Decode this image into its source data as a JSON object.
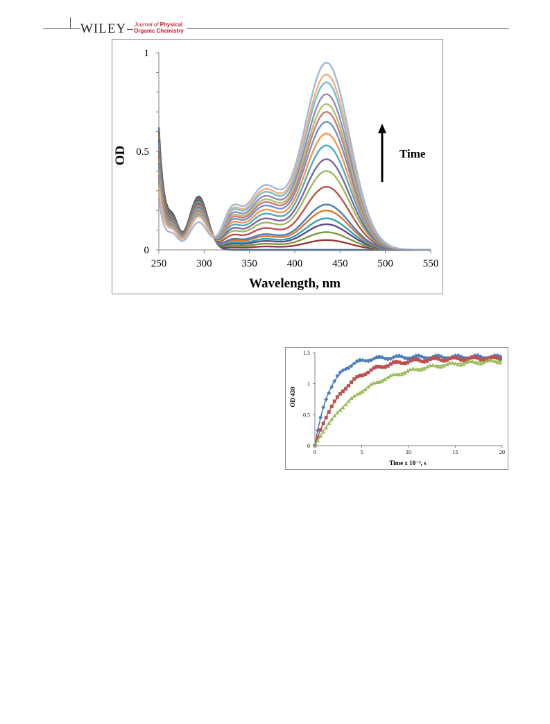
{
  "header": {
    "publisher": "WILEY",
    "journal_prefix": "Journal of",
    "journal_line1": "Physical",
    "journal_line2": "Organic Chemistry",
    "accent_color": "#c41a2b"
  },
  "chart_data": [
    {
      "type": "line",
      "title": "",
      "xlabel": "Wavelength, nm",
      "ylabel": "OD",
      "xlim": [
        250,
        550
      ],
      "ylim": [
        0,
        1
      ],
      "x_ticks": [
        "250",
        "300",
        "350",
        "400",
        "450",
        "500",
        "550"
      ],
      "y_ticks": [
        "0",
        "0.5",
        "1"
      ],
      "grid": false,
      "legend": "none",
      "annotation": "Time",
      "annotation_arrow": "up",
      "peak_wavelength": 435,
      "isosbestic_point": [
        313,
        0.19
      ],
      "series": [
        {
          "color": "#2e5f99",
          "values": {
            "peak": 0.0,
            "uv270": 0.205,
            "uv295": 0.27,
            "uv250": 0.62
          }
        },
        {
          "color": "#9a3735",
          "values": {
            "peak": 0.05,
            "uv270": 0.2,
            "uv295": 0.264,
            "uv250": 0.6
          }
        },
        {
          "color": "#7a9a3e",
          "values": {
            "peak": 0.09,
            "uv270": 0.195,
            "uv295": 0.258,
            "uv250": 0.58
          }
        },
        {
          "color": "#5f4a8a",
          "values": {
            "peak": 0.13,
            "uv270": 0.19,
            "uv295": 0.252,
            "uv250": 0.56
          }
        },
        {
          "color": "#2e9fb6",
          "values": {
            "peak": 0.16,
            "uv270": 0.185,
            "uv295": 0.246,
            "uv250": 0.54
          }
        },
        {
          "color": "#e0762d",
          "values": {
            "peak": 0.2,
            "uv270": 0.18,
            "uv295": 0.24,
            "uv250": 0.52
          }
        },
        {
          "color": "#4a7ab8",
          "values": {
            "peak": 0.23,
            "uv270": 0.175,
            "uv295": 0.234,
            "uv250": 0.5
          }
        },
        {
          "color": "#c0504d",
          "values": {
            "peak": 0.32,
            "uv270": 0.17,
            "uv295": 0.228,
            "uv250": 0.48
          }
        },
        {
          "color": "#9bbb59",
          "values": {
            "peak": 0.4,
            "uv270": 0.165,
            "uv295": 0.222,
            "uv250": 0.46
          }
        },
        {
          "color": "#8064a2",
          "values": {
            "peak": 0.46,
            "uv270": 0.16,
            "uv295": 0.216,
            "uv250": 0.44
          }
        },
        {
          "color": "#4bacc6",
          "values": {
            "peak": 0.53,
            "uv270": 0.155,
            "uv295": 0.21,
            "uv250": 0.42
          }
        },
        {
          "color": "#f79646",
          "values": {
            "peak": 0.59,
            "uv270": 0.15,
            "uv295": 0.204,
            "uv250": 0.4
          }
        },
        {
          "color": "#6f94c8",
          "values": {
            "peak": 0.65,
            "uv270": 0.145,
            "uv295": 0.198,
            "uv250": 0.38
          }
        },
        {
          "color": "#d07a78",
          "values": {
            "peak": 0.7,
            "uv270": 0.14,
            "uv295": 0.192,
            "uv250": 0.37
          }
        },
        {
          "color": "#a8c66e",
          "values": {
            "peak": 0.74,
            "uv270": 0.135,
            "uv295": 0.186,
            "uv250": 0.36
          }
        },
        {
          "color": "#9d86bc",
          "values": {
            "peak": 0.79,
            "uv270": 0.13,
            "uv295": 0.18,
            "uv250": 0.35
          }
        },
        {
          "color": "#6ec0d6",
          "values": {
            "peak": 0.85,
            "uv270": 0.125,
            "uv295": 0.174,
            "uv250": 0.34
          }
        },
        {
          "color": "#f9ad7a",
          "values": {
            "peak": 0.89,
            "uv270": 0.12,
            "uv295": 0.168,
            "uv250": 0.33
          }
        },
        {
          "color": "#9fb8dc",
          "values": {
            "peak": 0.95,
            "uv270": 0.1,
            "uv295": 0.14,
            "uv250": 0.26
          }
        }
      ]
    },
    {
      "type": "scatter",
      "title": "",
      "xlabel": "Time x 10⁻³, s",
      "ylabel": "OD 430",
      "xlim": [
        0,
        20
      ],
      "ylim": [
        0,
        1.5
      ],
      "x_ticks": [
        "0",
        "5",
        "10",
        "15",
        "20"
      ],
      "y_ticks": [
        "0",
        "0.5",
        "1",
        "1.5"
      ],
      "grid": false,
      "legend": "none",
      "series": [
        {
          "marker": "diamond",
          "color": "#4a7ebb",
          "plateau": 1.43,
          "rate": 0.62
        },
        {
          "marker": "square",
          "color": "#c0504d",
          "plateau": 1.41,
          "rate": 0.33
        },
        {
          "marker": "triangle",
          "color": "#9bbb59",
          "plateau": 1.39,
          "rate": 0.2
        }
      ],
      "x_step": 0.3
    }
  ]
}
